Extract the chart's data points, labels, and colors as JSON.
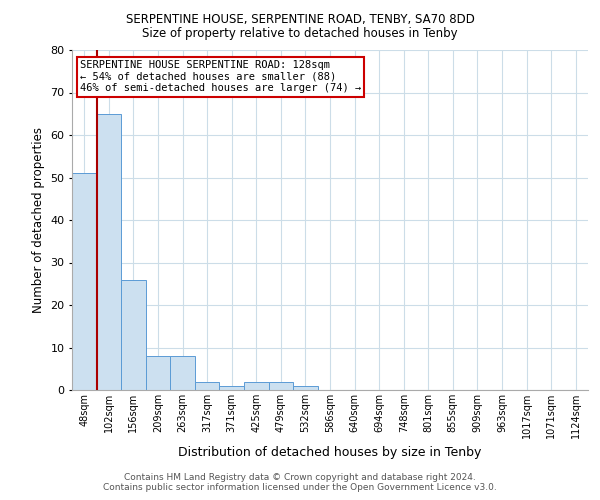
{
  "title1": "SERPENTINE HOUSE, SERPENTINE ROAD, TENBY, SA70 8DD",
  "title2": "Size of property relative to detached houses in Tenby",
  "xlabel": "Distribution of detached houses by size in Tenby",
  "ylabel": "Number of detached properties",
  "categories": [
    "48sqm",
    "102sqm",
    "156sqm",
    "209sqm",
    "263sqm",
    "317sqm",
    "371sqm",
    "425sqm",
    "479sqm",
    "532sqm",
    "586sqm",
    "640sqm",
    "694sqm",
    "748sqm",
    "801sqm",
    "855sqm",
    "909sqm",
    "963sqm",
    "1017sqm",
    "1071sqm",
    "1124sqm"
  ],
  "values": [
    51,
    65,
    26,
    8,
    8,
    2,
    1,
    2,
    2,
    1,
    0,
    0,
    0,
    0,
    0,
    0,
    0,
    0,
    0,
    0,
    0
  ],
  "bar_color": "#cce0f0",
  "bar_edge_color": "#5b9bd5",
  "vline_x_index": 0.5,
  "vline_color": "#aa0000",
  "annotation_text": "SERPENTINE HOUSE SERPENTINE ROAD: 128sqm\n← 54% of detached houses are smaller (88)\n46% of semi-detached houses are larger (74) →",
  "annotation_box_color": "#ffffff",
  "annotation_box_edge": "#cc0000",
  "ylim": [
    0,
    80
  ],
  "yticks": [
    0,
    10,
    20,
    30,
    40,
    50,
    60,
    70,
    80
  ],
  "footer1": "Contains HM Land Registry data © Crown copyright and database right 2024.",
  "footer2": "Contains public sector information licensed under the Open Government Licence v3.0.",
  "bg_color": "#ffffff",
  "grid_color": "#ccdde8"
}
